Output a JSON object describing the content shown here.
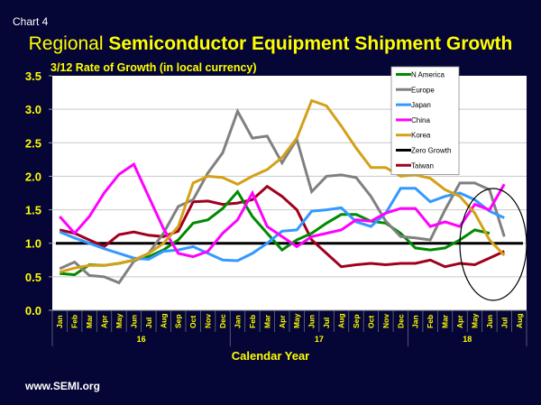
{
  "slide_label": "Chart 4",
  "footer": "www.SEMI.org",
  "colors": {
    "background": "#050536",
    "text": "#ffff00",
    "plot_bg": "#ffffff",
    "grid": "#c8c8c8"
  },
  "chart_data": {
    "type": "line",
    "title_regular": "Regional ",
    "title_bold": "Semiconductor Equipment Shipment Growth",
    "subtitle": "3/12 Rate of Growth (in local currency)",
    "xlabel": "Calendar Year",
    "ylabel": "",
    "ylim": [
      0,
      3.5
    ],
    "yticks": [
      "0.0",
      "0.5",
      "1.0",
      "1.5",
      "2.0",
      "2.5",
      "3.0",
      "3.5"
    ],
    "grid": true,
    "legend_position": "top-right",
    "categories": [
      "Jan",
      "Feb",
      "Mar",
      "Apr",
      "May",
      "Jun",
      "Jul",
      "Aug",
      "Sep",
      "Oct",
      "Nov",
      "Dec",
      "Jan",
      "Feb",
      "Mar",
      "Apr",
      "May",
      "Jun",
      "Jul",
      "Aug",
      "Sep",
      "Oct",
      "Nov",
      "Dec",
      "Jan",
      "Feb",
      "Mar",
      "Apr",
      "May",
      "Jun",
      "Jul",
      "Aug"
    ],
    "years": [
      {
        "label": "16",
        "start": 0,
        "end": 11
      },
      {
        "label": "17",
        "start": 12,
        "end": 23
      },
      {
        "label": "18",
        "start": 24,
        "end": 31
      }
    ],
    "series": [
      {
        "name": "N America",
        "color": "#008a00",
        "values": [
          0.55,
          0.53,
          0.68,
          0.67,
          0.7,
          0.75,
          0.8,
          0.9,
          1.05,
          1.3,
          1.35,
          1.52,
          1.77,
          1.4,
          1.15,
          0.9,
          1.05,
          1.15,
          1.3,
          1.43,
          1.43,
          1.33,
          1.3,
          1.15,
          0.93,
          0.9,
          0.93,
          1.05,
          1.2,
          1.15,
          null,
          null
        ]
      },
      {
        "name": "Europe",
        "color": "#808080",
        "values": [
          0.62,
          0.72,
          0.52,
          0.5,
          0.41,
          0.73,
          0.85,
          1.15,
          1.55,
          1.65,
          2.05,
          2.35,
          2.97,
          2.57,
          2.6,
          2.2,
          2.55,
          1.77,
          2.0,
          2.02,
          1.98,
          1.7,
          1.33,
          1.1,
          1.08,
          1.05,
          1.5,
          1.9,
          1.9,
          1.8,
          1.1,
          null
        ]
      },
      {
        "name": "Japan",
        "color": "#3399ff",
        "values": [
          1.17,
          1.08,
          1.0,
          0.92,
          0.85,
          0.78,
          0.76,
          0.88,
          0.9,
          0.95,
          0.85,
          0.75,
          0.74,
          0.85,
          1.0,
          1.18,
          1.2,
          1.48,
          1.5,
          1.53,
          1.32,
          1.25,
          1.45,
          1.82,
          1.82,
          1.62,
          1.7,
          1.75,
          1.65,
          1.48,
          1.38,
          null
        ]
      },
      {
        "name": "China",
        "color": "#ff00ff",
        "values": [
          1.4,
          1.15,
          1.4,
          1.75,
          2.03,
          2.18,
          1.7,
          1.22,
          0.85,
          0.8,
          0.88,
          1.15,
          1.35,
          1.75,
          1.25,
          1.1,
          0.95,
          1.1,
          1.15,
          1.2,
          1.35,
          1.33,
          1.45,
          1.52,
          1.52,
          1.25,
          1.32,
          1.25,
          1.58,
          1.5,
          1.88,
          null
        ]
      },
      {
        "name": "Korea",
        "color": "#d4a017",
        "values": [
          0.57,
          0.63,
          0.67,
          0.67,
          0.7,
          0.75,
          0.85,
          1.0,
          1.25,
          1.9,
          2.0,
          1.98,
          1.88,
          2.0,
          2.1,
          2.28,
          2.57,
          3.13,
          3.05,
          2.75,
          2.42,
          2.13,
          2.13,
          2.0,
          2.02,
          1.97,
          1.8,
          1.7,
          1.45,
          1.05,
          0.82,
          null
        ]
      },
      {
        "name": "Zero Growth",
        "color": "#000000",
        "values": [
          1.0,
          1.0,
          1.0,
          1.0,
          1.0,
          1.0,
          1.0,
          1.0,
          1.0,
          1.0,
          1.0,
          1.0,
          1.0,
          1.0,
          1.0,
          1.0,
          1.0,
          1.0,
          1.0,
          1.0,
          1.0,
          1.0,
          1.0,
          1.0,
          1.0,
          1.0,
          1.0,
          1.0,
          1.0,
          1.0,
          1.0,
          1.0
        ]
      },
      {
        "name": "Taiwan",
        "color": "#a0001e",
        "values": [
          1.2,
          1.15,
          1.05,
          0.95,
          1.13,
          1.17,
          1.12,
          1.1,
          1.18,
          1.62,
          1.63,
          1.58,
          1.6,
          1.65,
          1.85,
          1.7,
          1.5,
          1.05,
          0.85,
          0.65,
          0.68,
          0.7,
          0.68,
          0.7,
          0.7,
          0.75,
          0.65,
          0.7,
          0.68,
          0.78,
          0.88,
          null
        ]
      }
    ],
    "annotation": "ellipse highlighting May–Jul 2018"
  }
}
